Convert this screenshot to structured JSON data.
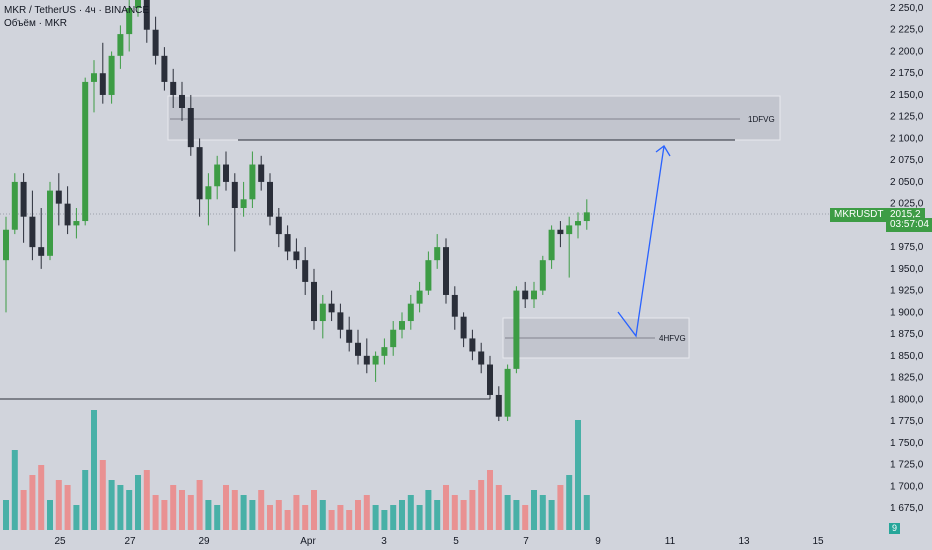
{
  "legend": {
    "symbol_line": "MKR / TetherUS · 4ч · BINANCE",
    "volume_line": "Объём · MKR"
  },
  "price_axis": {
    "ticks": [
      "2 250,0",
      "2 225,0",
      "2 200,0",
      "2 175,0",
      "2 150,0",
      "2 125,0",
      "2 100,0",
      "2 075,0",
      "2 050,0",
      "2 025,0",
      "2 000,0",
      "1 975,0",
      "1 950,0",
      "1 925,0",
      "1 900,0",
      "1 875,0",
      "1 850,0",
      "1 825,0",
      "1 800,0",
      "1 775,0",
      "1 750,0",
      "1 725,0",
      "1 700,0",
      "1 675,0"
    ],
    "last_price": "2015,2",
    "countdown": "03:57:04",
    "symbol": "MKRUSDT",
    "volume_badge": "9"
  },
  "time_axis": {
    "labels": [
      "25",
      "27",
      "29",
      "Apr",
      "3",
      "5",
      "7",
      "9",
      "11",
      "13",
      "15"
    ]
  },
  "zones": [
    {
      "label": "1DFVG"
    },
    {
      "label": "4HFVG"
    }
  ],
  "colors": {
    "background": "#d1d4dc",
    "bull": "#3d9c45",
    "bear": "#2a2e39",
    "zone": "#bfc2cb",
    "arrow": "#2962ff",
    "vol_up": "#26a69a",
    "vol_down": "#ef7f7f"
  }
}
